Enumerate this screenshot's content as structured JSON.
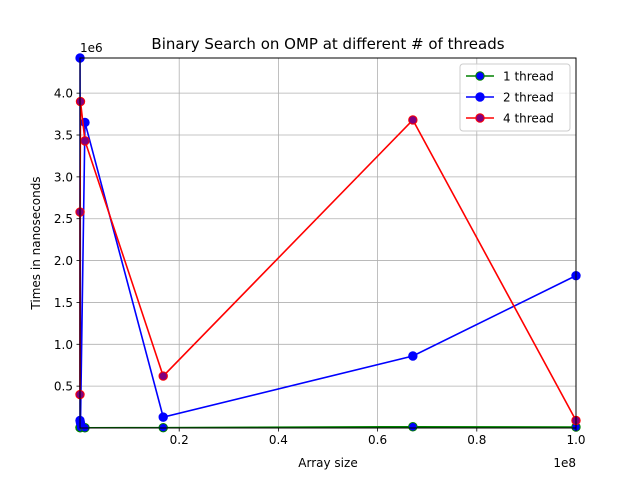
{
  "chart_data": {
    "type": "line",
    "title": "Binary Search on OMP at different # of threads",
    "xlabel": "Array size",
    "ylabel": "Times in nanoseconds",
    "x_offset_label": "1e8",
    "y_offset_label": "1e6",
    "x_scale_factor": 100000000,
    "y_scale_factor": 1000000,
    "xlim": [
      0,
      100000000
    ],
    "ylim": [
      0,
      4420000
    ],
    "xticks": [
      0.2,
      0.4,
      0.6,
      0.8,
      1.0
    ],
    "xtick_labels": [
      "0.2",
      "0.4",
      "0.6",
      "0.8",
      "1.0"
    ],
    "yticks": [
      0.5,
      1.0,
      1.5,
      2.0,
      2.5,
      3.0,
      3.5,
      4.0
    ],
    "ytick_labels": [
      "0.5",
      "1.0",
      "1.5",
      "2.0",
      "2.5",
      "3.0",
      "3.5",
      "4.0"
    ],
    "grid": true,
    "legend_position": "top-right",
    "series": [
      {
        "name": "1 thread",
        "line_color": "#008000",
        "marker_face": "#0000ff",
        "x": [
          1000,
          10000,
          100000,
          1000000,
          16777216,
          67108864,
          100000000
        ],
        "y": [
          5000,
          4000,
          6000,
          3000,
          4000,
          15000,
          12000
        ]
      },
      {
        "name": "2 thread",
        "line_color": "#0000ff",
        "marker_face": "#0000ff",
        "x": [
          1000,
          10000,
          100000,
          1000000,
          16777216,
          67108864,
          100000000
        ],
        "y": [
          90000,
          4420000,
          60000,
          3650000,
          130000,
          860000,
          1820000
        ]
      },
      {
        "name": "4 thread",
        "line_color": "#ff0000",
        "marker_face": "#800080",
        "x": [
          1000,
          10000,
          100000,
          1000000,
          16777216,
          67108864,
          100000000
        ],
        "y": [
          400000,
          2580000,
          3900000,
          3430000,
          620000,
          3680000,
          90000
        ]
      }
    ]
  }
}
